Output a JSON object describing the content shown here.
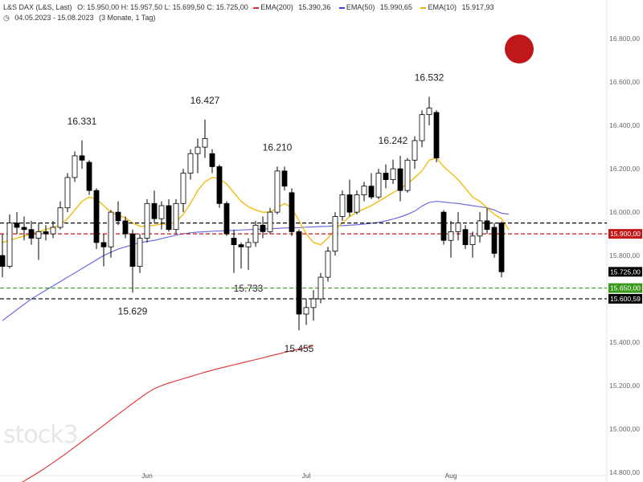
{
  "header": {
    "instrument": "L&S DAX (L&S, Last)",
    "ohlc": "O: 15.950,00  H: 15.957,50  L: 15.699,50  C: 15.725,00",
    "legend": [
      {
        "label": "EMA(200)",
        "value": "15.390,36",
        "color": "#e03030"
      },
      {
        "label": "EMA(50)",
        "value": "15.990,65",
        "color": "#4040e0"
      },
      {
        "label": "EMA(10)",
        "value": "15.917,93",
        "color": "#f0b800"
      }
    ],
    "range": "04.05.2023 - 15.08.2023",
    "period": "(3 Monate, 1 Tag)"
  },
  "watermark": "stock3",
  "colors": {
    "up": "#ffffff",
    "down": "#000000",
    "ema200": "#e03030",
    "ema50": "#6060e0",
    "ema10": "#f2bc10",
    "level_red": "#c01818",
    "level_black": "#000000",
    "level_green": "#3a9a1a",
    "marker": "#c0171d"
  },
  "chart_data": {
    "type": "candlestick",
    "y_axis": {
      "min": 14800,
      "max": 16860,
      "ticks": [
        {
          "v": 16800,
          "label": "16.800,00"
        },
        {
          "v": 16600,
          "label": "16.600,00"
        },
        {
          "v": 16400,
          "label": "16.400,00"
        },
        {
          "v": 16200,
          "label": "16.200,00"
        },
        {
          "v": 16000,
          "label": "16.000,00"
        },
        {
          "v": 15800,
          "label": "15.800,00"
        },
        {
          "v": 15600,
          "label": "15.600,00"
        },
        {
          "v": 15400,
          "label": "15.400,00"
        },
        {
          "v": 15200,
          "label": "15.200,00"
        },
        {
          "v": 15000,
          "label": "15.000,00"
        },
        {
          "v": 14800,
          "label": "14.800,00"
        }
      ]
    },
    "x_labels": [
      {
        "index": 20,
        "label": "Jun"
      },
      {
        "index": 42,
        "label": "Jul"
      },
      {
        "index": 62,
        "label": "Aug"
      }
    ],
    "candles": [
      [
        15800,
        15900,
        15700,
        15750
      ],
      [
        15750,
        15990,
        15740,
        15950
      ],
      [
        15950,
        16000,
        15900,
        15930
      ],
      [
        15930,
        15980,
        15870,
        15920
      ],
      [
        15920,
        15960,
        15850,
        15880
      ],
      [
        15880,
        15950,
        15780,
        15910
      ],
      [
        15910,
        15940,
        15870,
        15900
      ],
      [
        15900,
        15960,
        15880,
        15930
      ],
      [
        15930,
        16050,
        15920,
        16020
      ],
      [
        16020,
        16180,
        16000,
        16160
      ],
      [
        16160,
        16280,
        16140,
        16260
      ],
      [
        16260,
        16331,
        16200,
        16240
      ],
      [
        16230,
        16240,
        16080,
        16100
      ],
      [
        16100,
        16110,
        15830,
        15860
      ],
      [
        15860,
        15900,
        15750,
        15840
      ],
      [
        15840,
        16010,
        15790,
        16000
      ],
      [
        16000,
        16050,
        15940,
        15960
      ],
      [
        15960,
        15980,
        15880,
        15900
      ],
      [
        15900,
        15920,
        15629,
        15750
      ],
      [
        15750,
        15900,
        15720,
        15880
      ],
      [
        15880,
        16060,
        15860,
        16040
      ],
      [
        16040,
        16100,
        15950,
        15970
      ],
      [
        15970,
        16050,
        15920,
        16030
      ],
      [
        16030,
        16060,
        15910,
        15920
      ],
      [
        15920,
        16060,
        15900,
        16040
      ],
      [
        16040,
        16200,
        16000,
        16180
      ],
      [
        16180,
        16290,
        16150,
        16270
      ],
      [
        16270,
        16340,
        16180,
        16300
      ],
      [
        16300,
        16427,
        16250,
        16340
      ],
      [
        16270,
        16290,
        16180,
        16210
      ],
      [
        16210,
        16220,
        16020,
        16040
      ],
      [
        16040,
        16050,
        15890,
        15900
      ],
      [
        15880,
        15920,
        15720,
        15850
      ],
      [
        15850,
        15860,
        15740,
        15840
      ],
      [
        15840,
        15880,
        15733,
        15860
      ],
      [
        15860,
        15960,
        15840,
        15940
      ],
      [
        15940,
        15980,
        15880,
        15910
      ],
      [
        15910,
        16020,
        15900,
        16000
      ],
      [
        16000,
        16210,
        15990,
        16190
      ],
      [
        16190,
        16210,
        16100,
        16120
      ],
      [
        16090,
        16110,
        15890,
        15910
      ],
      [
        15910,
        15920,
        15455,
        15530
      ],
      [
        15530,
        15600,
        15480,
        15560
      ],
      [
        15560,
        15640,
        15500,
        15600
      ],
      [
        15600,
        15720,
        15580,
        15700
      ],
      [
        15700,
        15840,
        15680,
        15820
      ],
      [
        15820,
        16000,
        15800,
        15980
      ],
      [
        15980,
        16100,
        15960,
        16080
      ],
      [
        16080,
        16150,
        15980,
        16000
      ],
      [
        16000,
        16100,
        15990,
        16080
      ],
      [
        16080,
        16140,
        16050,
        16120
      ],
      [
        16120,
        16180,
        16060,
        16070
      ],
      [
        16070,
        16200,
        16060,
        16180
      ],
      [
        16180,
        16220,
        16110,
        16150
      ],
      [
        16150,
        16242,
        16130,
        16200
      ],
      [
        16200,
        16260,
        16050,
        16100
      ],
      [
        16100,
        16250,
        16090,
        16240
      ],
      [
        16240,
        16350,
        16200,
        16330
      ],
      [
        16330,
        16470,
        16300,
        16450
      ],
      [
        16450,
        16532,
        16400,
        16480
      ],
      [
        16460,
        16470,
        16230,
        16250
      ],
      [
        16000,
        16010,
        15850,
        15870
      ],
      [
        15870,
        15960,
        15790,
        15910
      ],
      [
        15910,
        16000,
        15870,
        15950
      ],
      [
        15920,
        15940,
        15830,
        15850
      ],
      [
        15850,
        15910,
        15790,
        15890
      ],
      [
        15890,
        16000,
        15860,
        15960
      ],
      [
        15960,
        16020,
        15900,
        15920
      ],
      [
        15930,
        15950,
        15790,
        15810
      ],
      [
        15950,
        15957.5,
        15699.5,
        15725
      ]
    ],
    "ema_series": [
      {
        "name": "EMA(200)",
        "color": "#e03030",
        "start": 0,
        "values": [
          14700,
          14720,
          14740,
          14760,
          14780,
          14800,
          14822,
          14845,
          14868,
          14892,
          14917,
          14942,
          14967,
          14992,
          15017,
          15043,
          15068,
          15093,
          15118,
          15142,
          15166,
          15186,
          15200,
          15212,
          15222,
          15232,
          15242,
          15252,
          15262,
          15271,
          15280,
          15288,
          15296,
          15304,
          15312,
          15320,
          15328,
          15337,
          15345,
          15353,
          15361,
          15368,
          15376,
          15384
        ]
      },
      {
        "name": "EMA(50)",
        "color": "#6060e0",
        "start": 0,
        "values": [
          15500,
          15525,
          15550,
          15575,
          15600,
          15620,
          15640,
          15660,
          15680,
          15700,
          15720,
          15740,
          15760,
          15780,
          15800,
          15815,
          15830,
          15840,
          15850,
          15860,
          15865,
          15870,
          15878,
          15886,
          15894,
          15900,
          15905,
          15908,
          15910,
          15912,
          15913,
          15915,
          15916,
          15918,
          15919,
          15921,
          15922,
          15924,
          15925,
          15927,
          15928,
          15929,
          15931,
          15932,
          15934,
          15935,
          15937,
          15938,
          15940,
          15942,
          15945,
          15949,
          15953,
          15960,
          15968,
          15978,
          15990,
          16005,
          16028,
          16045,
          16050,
          16047,
          16043,
          16040,
          16035,
          16030,
          16025,
          16020,
          16010,
          15995,
          15991
        ]
      },
      {
        "name": "EMA(10)",
        "color": "#f2bc10",
        "start": 0,
        "values": [
          15860,
          15870,
          15880,
          15890,
          15900,
          15910,
          15920,
          15930,
          15940,
          15970,
          16010,
          16050,
          16070,
          16060,
          16030,
          16000,
          15985,
          15975,
          15950,
          15935,
          15935,
          15940,
          15945,
          15945,
          15955,
          15990,
          16040,
          16100,
          16140,
          16160,
          16155,
          16130,
          16090,
          16050,
          16025,
          16010,
          16000,
          16000,
          16020,
          16040,
          16020,
          15960,
          15900,
          15860,
          15850,
          15880,
          15920,
          15950,
          15980,
          16000,
          16015,
          16030,
          16050,
          16070,
          16090,
          16110,
          16130,
          16160,
          16190,
          16240,
          16250,
          16210,
          16180,
          16150,
          16110,
          16070,
          16050,
          16020,
          15990,
          15970,
          15918
        ]
      }
    ],
    "levels": [
      {
        "value": 15950,
        "color": "#000000",
        "dash": true,
        "label": ""
      },
      {
        "value": 15900,
        "color": "#c01818",
        "dash": true,
        "label": "15.900,00"
      },
      {
        "value": 15650,
        "color": "#3a9a1a",
        "dash": true,
        "label": "15.650,00"
      },
      {
        "value": 15600.59,
        "color": "#000000",
        "dash": true,
        "label": "15.600,59"
      }
    ],
    "last_price": {
      "value": 15725,
      "label": "15.725,00"
    },
    "annotations": [
      {
        "index": 11,
        "value": 16331,
        "text": "16.331",
        "pos": "above"
      },
      {
        "index": 28,
        "value": 16427,
        "text": "16.427",
        "pos": "above"
      },
      {
        "index": 38,
        "value": 16210,
        "text": "16.210",
        "pos": "above"
      },
      {
        "index": 54,
        "value": 16242,
        "text": "16.242",
        "pos": "above"
      },
      {
        "index": 59,
        "value": 16532,
        "text": "16.532",
        "pos": "above"
      },
      {
        "index": 18,
        "value": 15629,
        "text": "15.629",
        "pos": "below"
      },
      {
        "index": 34,
        "value": 15733,
        "text": "15.733",
        "pos": "below"
      },
      {
        "index": 41,
        "value": 15455,
        "text": "15.455",
        "pos": "below"
      }
    ]
  }
}
